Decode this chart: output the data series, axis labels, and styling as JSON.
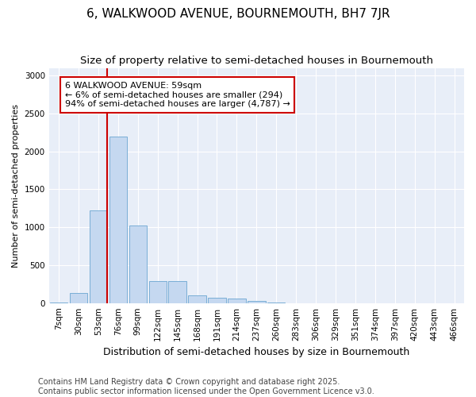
{
  "title": "6, WALKWOOD AVENUE, BOURNEMOUTH, BH7 7JR",
  "subtitle": "Size of property relative to semi-detached houses in Bournemouth",
  "xlabel": "Distribution of semi-detached houses by size in Bournemouth",
  "ylabel": "Number of semi-detached properties",
  "categories": [
    "7sqm",
    "30sqm",
    "53sqm",
    "76sqm",
    "99sqm",
    "122sqm",
    "145sqm",
    "168sqm",
    "191sqm",
    "214sqm",
    "237sqm",
    "260sqm",
    "283sqm",
    "306sqm",
    "329sqm",
    "351sqm",
    "374sqm",
    "397sqm",
    "420sqm",
    "443sqm",
    "466sqm"
  ],
  "values": [
    10,
    130,
    1220,
    2200,
    1020,
    290,
    290,
    100,
    70,
    55,
    30,
    10,
    0,
    0,
    0,
    0,
    0,
    0,
    0,
    0,
    0
  ],
  "bar_color": "#c5d8f0",
  "bar_edge_color": "#7aaed6",
  "vline_color": "#cc0000",
  "annotation_text": "6 WALKWOOD AVENUE: 59sqm\n← 6% of semi-detached houses are smaller (294)\n94% of semi-detached houses are larger (4,787) →",
  "annotation_box_color": "#ffffff",
  "annotation_box_edge": "#cc0000",
  "ylim": [
    0,
    3100
  ],
  "yticks": [
    0,
    500,
    1000,
    1500,
    2000,
    2500,
    3000
  ],
  "footer": "Contains HM Land Registry data © Crown copyright and database right 2025.\nContains public sector information licensed under the Open Government Licence v3.0.",
  "plot_bg_color": "#e8eef8",
  "fig_bg_color": "#ffffff",
  "grid_color": "#ffffff",
  "title_fontsize": 11,
  "subtitle_fontsize": 9.5,
  "xlabel_fontsize": 9,
  "ylabel_fontsize": 8,
  "tick_fontsize": 7.5,
  "footer_fontsize": 7,
  "ann_fontsize": 8
}
